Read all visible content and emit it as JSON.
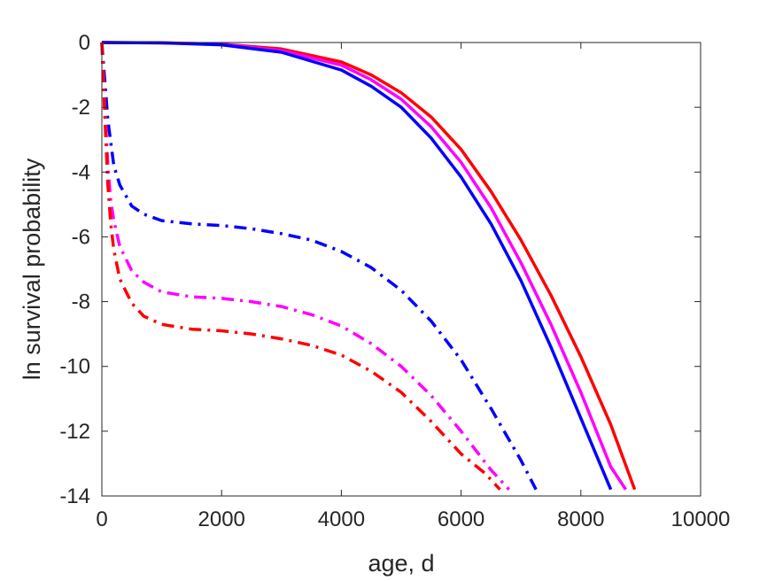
{
  "chart_data": {
    "type": "line",
    "title": "",
    "xlabel": "age, d",
    "ylabel": "ln survival probability",
    "xlim": [
      0,
      10000
    ],
    "ylim": [
      -14,
      0
    ],
    "xticks": [
      0,
      2000,
      4000,
      6000,
      8000,
      10000
    ],
    "yticks": [
      0,
      -2,
      -4,
      -6,
      -8,
      -10,
      -12,
      -14
    ],
    "grid": false,
    "legend": "none",
    "series": [
      {
        "color": "#ff0000",
        "style": "solid",
        "x": [
          0,
          1000,
          2000,
          3000,
          4000,
          4500,
          5000,
          5500,
          6000,
          6500,
          7000,
          7500,
          8000,
          8500,
          8900
        ],
        "y": [
          0,
          -0.01,
          -0.05,
          -0.2,
          -0.6,
          -1.0,
          -1.55,
          -2.3,
          -3.3,
          -4.6,
          -6.1,
          -7.8,
          -9.7,
          -11.8,
          -13.8
        ]
      },
      {
        "color": "#ff00ff",
        "style": "solid",
        "x": [
          0,
          1000,
          2000,
          3000,
          4000,
          4500,
          5000,
          5500,
          6000,
          6500,
          7000,
          7500,
          8000,
          8500,
          8750
        ],
        "y": [
          0,
          -0.01,
          -0.05,
          -0.25,
          -0.7,
          -1.15,
          -1.75,
          -2.6,
          -3.7,
          -5.1,
          -6.8,
          -8.7,
          -10.8,
          -13.1,
          -13.8
        ]
      },
      {
        "color": "#0000ff",
        "style": "solid",
        "x": [
          0,
          1000,
          2000,
          3000,
          4000,
          4500,
          5000,
          5500,
          6000,
          6500,
          7000,
          7500,
          8000,
          8500
        ],
        "y": [
          0,
          -0.01,
          -0.07,
          -0.3,
          -0.85,
          -1.35,
          -2.0,
          -2.95,
          -4.15,
          -5.6,
          -7.35,
          -9.4,
          -11.6,
          -13.8
        ]
      },
      {
        "color": "#0000ff",
        "style": "dashdot",
        "x": [
          0,
          50,
          100,
          200,
          300,
          500,
          700,
          1000,
          1500,
          2000,
          2500,
          3000,
          3500,
          4000,
          4500,
          5000,
          5500,
          6000,
          6500,
          7000,
          7250
        ],
        "y": [
          0,
          -1.2,
          -2.4,
          -3.8,
          -4.4,
          -5.05,
          -5.3,
          -5.5,
          -5.6,
          -5.65,
          -5.75,
          -5.9,
          -6.1,
          -6.45,
          -6.95,
          -7.65,
          -8.6,
          -9.8,
          -11.3,
          -12.9,
          -13.8
        ]
      },
      {
        "color": "#ff00ff",
        "style": "dashdot",
        "x": [
          0,
          50,
          100,
          150,
          200,
          300,
          500,
          700,
          1000,
          1500,
          2000,
          2500,
          3000,
          3500,
          4000,
          4500,
          5000,
          5500,
          6000,
          6500,
          6800
        ],
        "y": [
          0,
          -2.0,
          -3.8,
          -4.9,
          -5.5,
          -6.3,
          -7.05,
          -7.4,
          -7.7,
          -7.85,
          -7.9,
          -8.0,
          -8.15,
          -8.4,
          -8.75,
          -9.3,
          -10.0,
          -10.9,
          -12.0,
          -13.2,
          -13.8
        ]
      },
      {
        "color": "#ff0000",
        "style": "dashdot",
        "x": [
          0,
          50,
          100,
          150,
          200,
          300,
          500,
          700,
          1000,
          1500,
          2000,
          2500,
          3000,
          3500,
          4000,
          4500,
          5000,
          5500,
          6000,
          6400,
          6650
        ],
        "y": [
          0,
          -2.3,
          -4.4,
          -5.6,
          -6.4,
          -7.3,
          -8.05,
          -8.45,
          -8.7,
          -8.85,
          -8.9,
          -9.0,
          -9.15,
          -9.35,
          -9.65,
          -10.15,
          -10.8,
          -11.7,
          -12.7,
          -13.3,
          -13.8
        ]
      }
    ]
  }
}
